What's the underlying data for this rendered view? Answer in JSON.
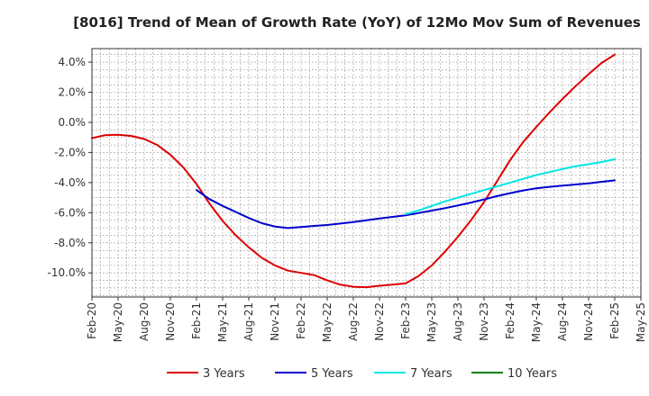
{
  "chart_data": {
    "type": "line",
    "title": "[8016]  Trend of Mean of Growth Rate (YoY) of 12Mo Mov Sum of Revenues",
    "xlabel": "",
    "ylabel": "",
    "x_ticks": [
      "Feb-20",
      "May-20",
      "Aug-20",
      "Nov-20",
      "Feb-21",
      "May-21",
      "Aug-21",
      "Nov-21",
      "Feb-22",
      "May-22",
      "Aug-22",
      "Nov-22",
      "Feb-23",
      "May-23",
      "Aug-23",
      "Nov-23",
      "Feb-24",
      "May-24",
      "Aug-24",
      "Nov-24",
      "Feb-25",
      "May-25"
    ],
    "y_ticks": [
      "4.0%",
      "2.0%",
      "0.0%",
      "-2.0%",
      "-4.0%",
      "-6.0%",
      "-8.0%",
      "-10.0%"
    ],
    "y_tick_values": [
      4,
      2,
      0,
      -2,
      -4,
      -6,
      -8,
      -10
    ],
    "ylim": [
      -11.6,
      4.9
    ],
    "x_range_quarters": [
      0,
      21
    ],
    "grid": true,
    "legend_position": "bottom",
    "series": [
      {
        "name": "3 Years",
        "color": "#dd0000",
        "points": [
          [
            0,
            -1.05
          ],
          [
            0.5,
            -0.85
          ],
          [
            1,
            -0.82
          ],
          [
            1.5,
            -0.9
          ],
          [
            2,
            -1.1
          ],
          [
            2.5,
            -1.5
          ],
          [
            3,
            -2.15
          ],
          [
            3.5,
            -3.0
          ],
          [
            4,
            -4.1
          ],
          [
            4.5,
            -5.4
          ],
          [
            5,
            -6.55
          ],
          [
            5.5,
            -7.5
          ],
          [
            6,
            -8.3
          ],
          [
            6.5,
            -9.0
          ],
          [
            7,
            -9.5
          ],
          [
            7.5,
            -9.85
          ],
          [
            8,
            -10.0
          ],
          [
            8.5,
            -10.15
          ],
          [
            9,
            -10.5
          ],
          [
            9.5,
            -10.78
          ],
          [
            10,
            -10.92
          ],
          [
            10.5,
            -10.95
          ],
          [
            11,
            -10.85
          ],
          [
            11.5,
            -10.78
          ],
          [
            12,
            -10.7
          ],
          [
            12.5,
            -10.2
          ],
          [
            13,
            -9.5
          ],
          [
            13.5,
            -8.6
          ],
          [
            14,
            -7.6
          ],
          [
            14.5,
            -6.5
          ],
          [
            15,
            -5.3
          ],
          [
            15.5,
            -3.9
          ],
          [
            16,
            -2.5
          ],
          [
            16.5,
            -1.3
          ],
          [
            17,
            -0.3
          ],
          [
            17.5,
            0.65
          ],
          [
            18,
            1.55
          ],
          [
            18.5,
            2.4
          ],
          [
            19,
            3.2
          ],
          [
            19.5,
            3.95
          ],
          [
            20,
            4.5
          ]
        ]
      },
      {
        "name": "5 Years",
        "color": "#0000cc",
        "points": [
          [
            4,
            -4.5
          ],
          [
            4.5,
            -5.1
          ],
          [
            5,
            -5.55
          ],
          [
            5.5,
            -5.95
          ],
          [
            6,
            -6.35
          ],
          [
            6.5,
            -6.7
          ],
          [
            7,
            -6.92
          ],
          [
            7.5,
            -7.02
          ],
          [
            8,
            -6.95
          ],
          [
            8.5,
            -6.88
          ],
          [
            9,
            -6.82
          ],
          [
            9.5,
            -6.72
          ],
          [
            10,
            -6.62
          ],
          [
            10.5,
            -6.5
          ],
          [
            11,
            -6.38
          ],
          [
            11.5,
            -6.28
          ],
          [
            12,
            -6.18
          ],
          [
            12.5,
            -6.02
          ],
          [
            13,
            -5.86
          ],
          [
            13.5,
            -5.7
          ],
          [
            14,
            -5.52
          ],
          [
            14.5,
            -5.33
          ],
          [
            15,
            -5.12
          ],
          [
            15.5,
            -4.9
          ],
          [
            16,
            -4.7
          ],
          [
            16.5,
            -4.52
          ],
          [
            17,
            -4.38
          ],
          [
            17.5,
            -4.28
          ],
          [
            18,
            -4.2
          ],
          [
            18.5,
            -4.13
          ],
          [
            19,
            -4.05
          ],
          [
            19.5,
            -3.95
          ],
          [
            20,
            -3.85
          ]
        ]
      },
      {
        "name": "7 Years",
        "color": "#00e5e5",
        "points": [
          [
            12,
            -6.1
          ],
          [
            12.5,
            -5.85
          ],
          [
            13,
            -5.55
          ],
          [
            13.5,
            -5.25
          ],
          [
            14,
            -5.0
          ],
          [
            14.5,
            -4.75
          ],
          [
            15,
            -4.5
          ],
          [
            15.5,
            -4.25
          ],
          [
            16,
            -4.0
          ],
          [
            16.5,
            -3.75
          ],
          [
            17,
            -3.5
          ],
          [
            17.5,
            -3.3
          ],
          [
            18,
            -3.1
          ],
          [
            18.5,
            -2.92
          ],
          [
            19,
            -2.78
          ],
          [
            19.5,
            -2.63
          ],
          [
            20,
            -2.45
          ]
        ]
      },
      {
        "name": "10 Years",
        "color": "#008000",
        "points": []
      }
    ]
  }
}
